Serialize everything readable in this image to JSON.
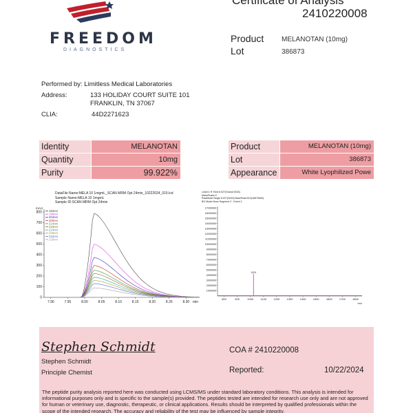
{
  "logo": {
    "word": "FREEDOM",
    "sub": "DIAGNOSTICS"
  },
  "header": {
    "title": "Certificate of Analysis",
    "number": "2410220008"
  },
  "summary": {
    "product_label": "Product",
    "product_value": "MELANOTAN (10mg)",
    "lot_label": "Lot",
    "lot_value": "386873"
  },
  "lab": {
    "performed_by": "Performed by: Limitless Medical Laboratories",
    "address_label": "Address:",
    "address_line1": "133 HOLIDAY COURT SUITE 101",
    "address_line2": "FRANKLIN, TN 37067",
    "clia_label": "CLIA:",
    "clia_value": "44D2271623"
  },
  "left_table": [
    {
      "label": "Identity",
      "value": "MELANOTAN"
    },
    {
      "label": "Quantity",
      "value": "10mg"
    },
    {
      "label": "Purity",
      "value": "99.922%"
    }
  ],
  "right_table": [
    {
      "label": "Product",
      "value": "MELANOTAN (10mg)"
    },
    {
      "label": "Lot",
      "value": "386873"
    },
    {
      "label": "Appearance",
      "value": "White Lyophilized Powe"
    }
  ],
  "chromatogram": {
    "header_lines": [
      "DataFile Name:MELA 10 1mgmL_SCAN MRM Opt 24min_10222024_015.lcd",
      "Sample Name:MELA 10 1mgmL",
      "Sample ID:SCAN MRM Opt 24min"
    ],
    "unit": "mAU",
    "y_ticks": [
      "800",
      "700",
      "600",
      "500",
      "400",
      "300",
      "200",
      "100",
      "0"
    ],
    "x_ticks": [
      "7.90",
      "7.95",
      "8.00",
      "8.05",
      "8.10",
      "8.15",
      "8.20",
      "8.25",
      "8.30"
    ],
    "x_unit": "min",
    "legend": [
      "194nm",
      "196nm",
      "204nm",
      "209nm",
      "214nm",
      "219nm",
      "224nm",
      "229nm",
      "234nm",
      "239nm"
    ],
    "legend_colors": [
      "#444444",
      "#e040e0",
      "#3030c0",
      "#c03030",
      "#30a030",
      "#a06030",
      "#30a0a0",
      "#a0a030",
      "#6060e0",
      "#a0a0a0"
    ]
  },
  "chart_data": {
    "type": "line",
    "title": "",
    "xlabel": "min",
    "ylabel": "mAU",
    "xlim": [
      7.88,
      8.34
    ],
    "ylim": [
      0,
      800
    ],
    "peak_x": 8.025,
    "series": [
      {
        "name": "194nm",
        "peak": 790
      },
      {
        "name": "196nm",
        "peak": 500
      },
      {
        "name": "204nm",
        "peak": 375
      },
      {
        "name": "209nm",
        "peak": 300
      },
      {
        "name": "214nm",
        "peak": 255
      },
      {
        "name": "219nm",
        "peak": 225
      },
      {
        "name": "224nm",
        "peak": 190
      },
      {
        "name": "229nm",
        "peak": 160
      },
      {
        "name": "234nm",
        "peak": 130
      },
      {
        "name": "239nm",
        "peak": 90
      }
    ]
  },
  "mass_spec": {
    "header_lines": [
      "Line#:1   R.Time:8.027(Scan#:3033)",
      "MassPeaks:3",
      "RawMode:Single 8.027(3033)  BasePeak:513(16673663)",
      "BG Mode:None  Segment 3 - Event 3"
    ],
    "y_ticks": [
      "17000000",
      "16000000",
      "15000000",
      "14000000",
      "13000000",
      "12000000",
      "11000000",
      "10000000",
      "9000000",
      "8000000",
      "7000000",
      "6000000",
      "5000000",
      "4000000",
      "3000000",
      "2000000",
      "1000000"
    ],
    "x_ticks": [
      "800",
      "900",
      "1000",
      "1100",
      "1200",
      "1300",
      "1400",
      "1500",
      "1600",
      "1700",
      "1800"
    ],
    "x_unit": "m/z",
    "peak_label": "1024"
  },
  "footer": {
    "signature": "Stephen Schmidt",
    "name": "Stephen Schmidt",
    "role": "Principle Chemist",
    "coa": "COA # 2410220008",
    "reported_label": "Reported:",
    "reported_date": "10/22/2024",
    "disclaimer": "The peptide purity analysis reported here was conducted using LCMS/MS under standard laboratory conditions. This analysis is intended for informational purposes only and is specific to the sample(s) provided. The peptides tested are intended for research use only and are not approved for human or veterinary use, diagnostic, therapeutic, or clinical applications. Results should be interpreted by qualified professionals within the scope of the intended research. The accuracy and reliability of the test may be influenced by sample integrity."
  },
  "colors": {
    "label_bg": "#f5d5d8",
    "value_bg": "#ee9ea3",
    "footer_bg": "#f6d2d6",
    "logo_red": "#c0202c",
    "logo_blue": "#2d3a5e"
  }
}
